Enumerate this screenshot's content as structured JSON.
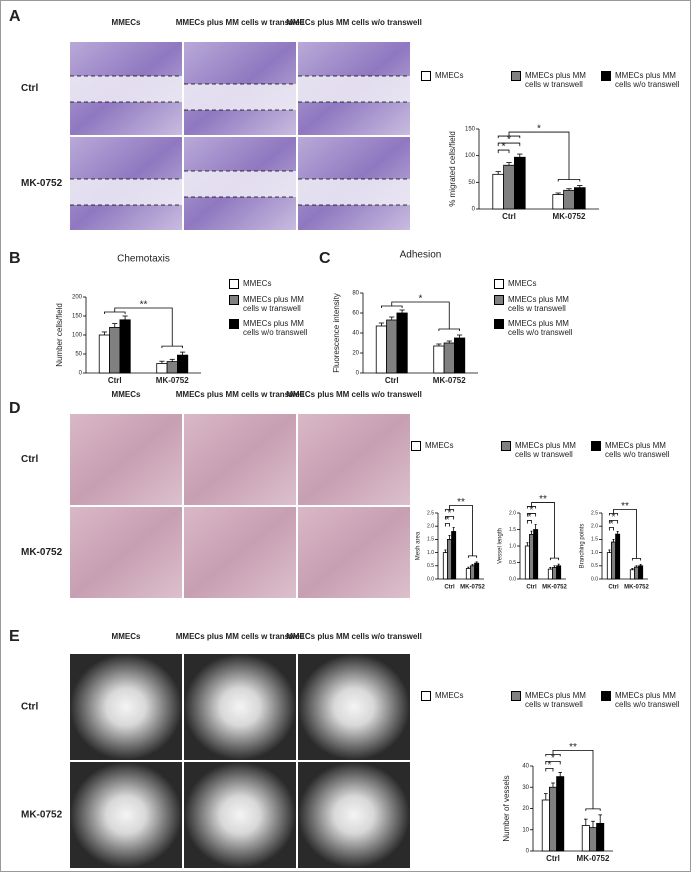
{
  "image_panels": [
    {
      "label": "A",
      "columns": [
        "MMECs",
        "MMECs plus MM cells w transwell",
        "MMECs plus MM cells w/o transwell"
      ],
      "rows": [
        "Ctrl",
        "MK-0752"
      ]
    },
    {
      "label": "D",
      "columns": [
        "MMECs",
        "MMECs plus MM cells w transwell",
        "MMECs plus MM cells w/o transwell"
      ],
      "rows": [
        "Ctrl",
        "MK-0752"
      ]
    },
    {
      "label": "E",
      "columns": [
        "MMECs",
        "MMECs plus MM cells w transwell",
        "MMECs plus MM cells w/o transwell"
      ],
      "rows": [
        "Ctrl",
        "MK-0752"
      ]
    }
  ],
  "chart_data": [
    {
      "type": "bar",
      "ylabel": "% migrated cells/field",
      "categories": [
        "Ctrl",
        "MK-0752"
      ],
      "series": [
        {
          "name": "MMECs",
          "color": "#ffffff",
          "values": [
            65,
            27
          ],
          "errors": [
            5,
            3
          ]
        },
        {
          "name": "MMECs plus MM cells w transwell",
          "color": "#808080",
          "values": [
            82,
            35
          ],
          "errors": [
            5,
            3
          ]
        },
        {
          "name": "MMECs plus MM cells w/o transwell",
          "color": "#000000",
          "values": [
            97,
            40
          ],
          "errors": [
            6,
            4
          ]
        }
      ],
      "ylim": [
        0,
        150
      ],
      "yticks": [
        0,
        50,
        100,
        150
      ],
      "annotations": [
        "*",
        "*",
        "*"
      ]
    },
    {
      "type": "bar",
      "panel": "B",
      "title": "Chemotaxis",
      "ylabel": "Number cells/field",
      "categories": [
        "Ctrl",
        "MK-0752"
      ],
      "series": [
        {
          "name": "MMECs",
          "color": "#ffffff",
          "values": [
            100,
            25
          ],
          "errors": [
            8,
            6
          ]
        },
        {
          "name": "MMECs plus MM cells w transwell",
          "color": "#808080",
          "values": [
            120,
            30
          ],
          "errors": [
            10,
            6
          ]
        },
        {
          "name": "MMECs plus MM cells w/o transwell",
          "color": "#000000",
          "values": [
            140,
            47
          ],
          "errors": [
            10,
            8
          ]
        }
      ],
      "ylim": [
        0,
        200
      ],
      "yticks": [
        0,
        50,
        100,
        150,
        200
      ],
      "annotations": [
        "**"
      ]
    },
    {
      "type": "bar",
      "panel": "C",
      "title": "Adhesion",
      "ylabel": "Fluorescence intensity",
      "categories": [
        "Ctrl",
        "MK-0752"
      ],
      "series": [
        {
          "name": "MMECs",
          "color": "#ffffff",
          "values": [
            47,
            27
          ],
          "errors": [
            3,
            2
          ]
        },
        {
          "name": "MMECs plus MM cells w transwell",
          "color": "#808080",
          "values": [
            53,
            30
          ],
          "errors": [
            3,
            2
          ]
        },
        {
          "name": "MMECs plus MM cells w/o transwell",
          "color": "#000000",
          "values": [
            60,
            35
          ],
          "errors": [
            3,
            3
          ]
        }
      ],
      "ylim": [
        0,
        80
      ],
      "yticks": [
        0,
        20,
        40,
        60,
        80
      ],
      "annotations": [
        "*"
      ]
    },
    {
      "type": "bar",
      "ylabel": "Mesh area",
      "categories": [
        "Ctrl",
        "MK-0752"
      ],
      "series": [
        {
          "name": "MMECs",
          "color": "#ffffff",
          "values": [
            1.0,
            0.4
          ],
          "errors": [
            0.1,
            0.05
          ]
        },
        {
          "name": "MMECs plus MM cells w transwell",
          "color": "#808080",
          "values": [
            1.5,
            0.5
          ],
          "errors": [
            0.15,
            0.05
          ]
        },
        {
          "name": "MMECs plus MM cells w/o transwell",
          "color": "#000000",
          "values": [
            1.8,
            0.6
          ],
          "errors": [
            0.15,
            0.05
          ]
        }
      ],
      "ylim": [
        0,
        2.5
      ],
      "yticks": [
        {
          "value": 0,
          "label": "0.0"
        },
        {
          "value": 0.5,
          "label": "0.5"
        },
        {
          "value": 1,
          "label": "1.0"
        },
        {
          "value": 1.5,
          "label": "1.5"
        },
        {
          "value": 2,
          "label": "2.0"
        },
        {
          "value": 2.5,
          "label": "2.5"
        }
      ],
      "annotations": [
        "*",
        "*",
        "**"
      ]
    },
    {
      "type": "bar",
      "ylabel": "Vessel length",
      "categories": [
        "Ctrl",
        "MK-0752"
      ],
      "series": [
        {
          "color": "#ffffff",
          "values": [
            1.0,
            0.3
          ],
          "errors": [
            0.1,
            0.05
          ]
        },
        {
          "color": "#808080",
          "values": [
            1.35,
            0.35
          ],
          "errors": [
            0.1,
            0.05
          ]
        },
        {
          "color": "#000000",
          "values": [
            1.5,
            0.4
          ],
          "errors": [
            0.15,
            0.05
          ]
        }
      ],
      "ylim": [
        0,
        2.0
      ],
      "yticks": [
        {
          "value": 0,
          "label": "0.0"
        },
        {
          "value": 0.5,
          "label": "0.5"
        },
        {
          "value": 1,
          "label": "1.0"
        },
        {
          "value": 1.5,
          "label": "1.5"
        },
        {
          "value": 2,
          "label": "2.0"
        }
      ],
      "annotations": [
        "*",
        "*",
        "**"
      ]
    },
    {
      "type": "bar",
      "ylabel": "Branching points",
      "categories": [
        "Ctrl",
        "MK-0752"
      ],
      "series": [
        {
          "color": "#ffffff",
          "values": [
            1.0,
            0.35
          ],
          "errors": [
            0.1,
            0.05
          ]
        },
        {
          "color": "#808080",
          "values": [
            1.4,
            0.45
          ],
          "errors": [
            0.1,
            0.05
          ]
        },
        {
          "color": "#000000",
          "values": [
            1.7,
            0.5
          ],
          "errors": [
            0.1,
            0.05
          ]
        }
      ],
      "ylim": [
        0,
        2.5
      ],
      "yticks": [
        {
          "value": 0,
          "label": "0.0"
        },
        {
          "value": 0.5,
          "label": "0.5"
        },
        {
          "value": 1,
          "label": "1.0"
        },
        {
          "value": 1.5,
          "label": "1.5"
        },
        {
          "value": 2,
          "label": "2.0"
        },
        {
          "value": 2.5,
          "label": "2.5"
        }
      ],
      "annotations": [
        "*",
        "*",
        "**"
      ]
    },
    {
      "type": "bar",
      "ylabel": "Number of vessels",
      "categories": [
        "Ctrl",
        "MK-0752"
      ],
      "series": [
        {
          "name": "MMECs",
          "color": "#ffffff",
          "values": [
            24,
            12
          ],
          "errors": [
            3,
            3
          ]
        },
        {
          "name": "MMECs plus MM cells w transwell",
          "color": "#808080",
          "values": [
            30,
            11
          ],
          "errors": [
            2,
            3
          ]
        },
        {
          "name": "MMECs plus MM cells w/o transwell",
          "color": "#000000",
          "values": [
            35,
            13
          ],
          "errors": [
            2,
            4
          ]
        }
      ],
      "ylim": [
        0,
        40
      ],
      "yticks": [
        0,
        10,
        20,
        30,
        40
      ],
      "annotations": [
        "*",
        "*",
        "**"
      ]
    }
  ]
}
